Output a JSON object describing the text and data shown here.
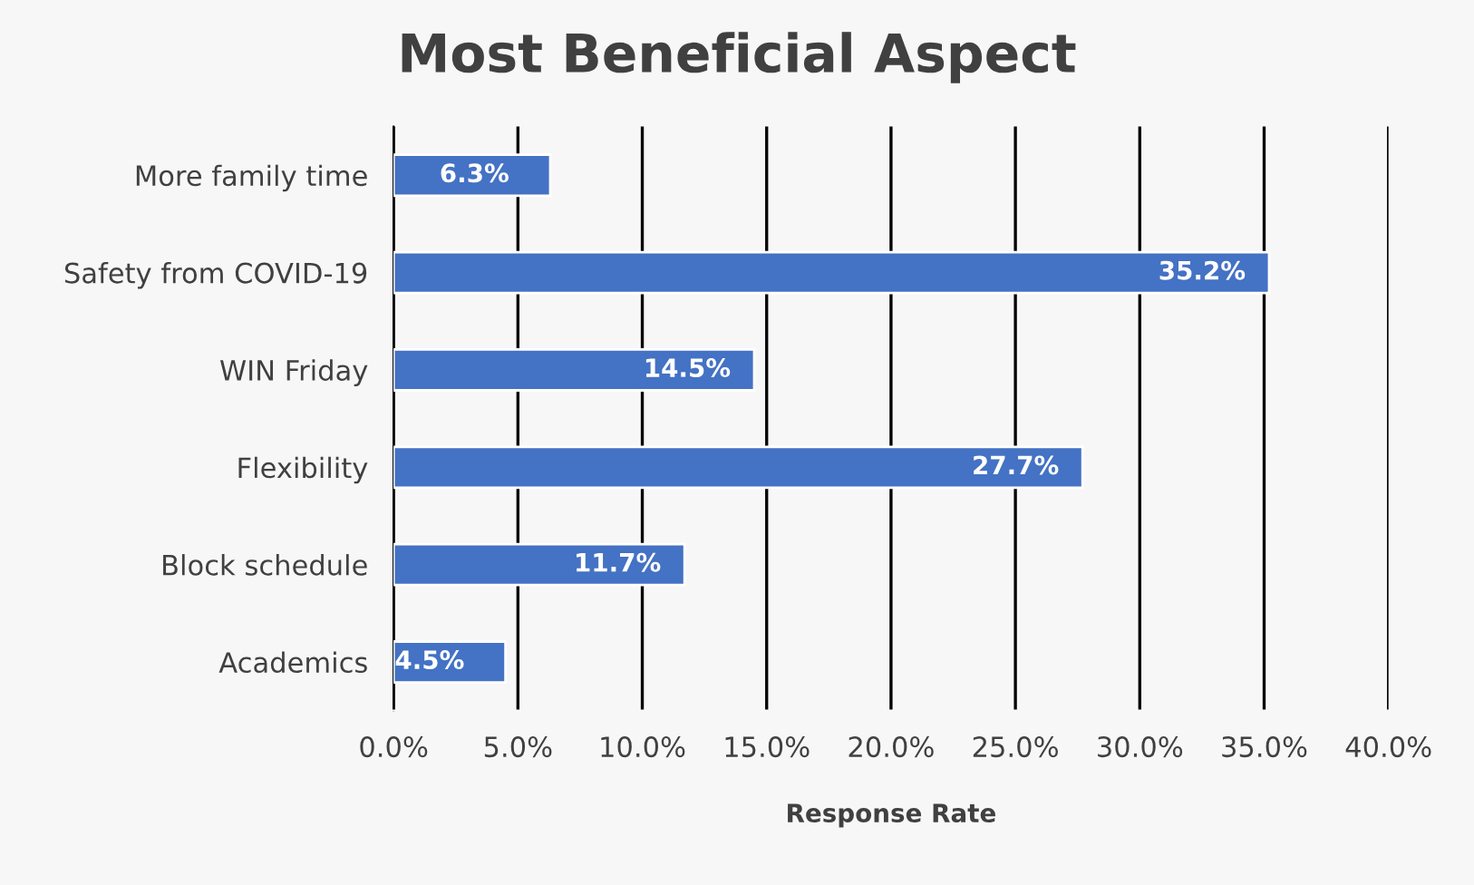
{
  "chart_data": {
    "type": "bar",
    "orientation": "horizontal",
    "title": "Most Beneficial Aspect",
    "xlabel": "Response Rate",
    "categories": [
      "More family time",
      "Safety from COVID-19",
      "WIN Friday",
      "Flexibility",
      "Block schedule",
      "Academics"
    ],
    "values": [
      6.3,
      35.2,
      14.5,
      27.7,
      11.7,
      4.5
    ],
    "color": "#4472c4",
    "value_labels": [
      "6.3%",
      "35.2%",
      "14.5%",
      "27.7%",
      "11.7%",
      "4.5%"
    ],
    "xlim": [
      0,
      40
    ],
    "xticks": [
      {
        "value": 0,
        "label": "0.0%"
      },
      {
        "value": 5,
        "label": "5.0%"
      },
      {
        "value": 10,
        "label": "10.0%"
      },
      {
        "value": 15,
        "label": "15.0%"
      },
      {
        "value": 20,
        "label": "20.0%"
      },
      {
        "value": 25,
        "label": "25.0%"
      },
      {
        "value": 30,
        "label": "30.0%"
      },
      {
        "value": 35,
        "label": "35.0%"
      },
      {
        "value": 40,
        "label": "40.0%"
      }
    ],
    "grid": "x",
    "legend": false
  }
}
